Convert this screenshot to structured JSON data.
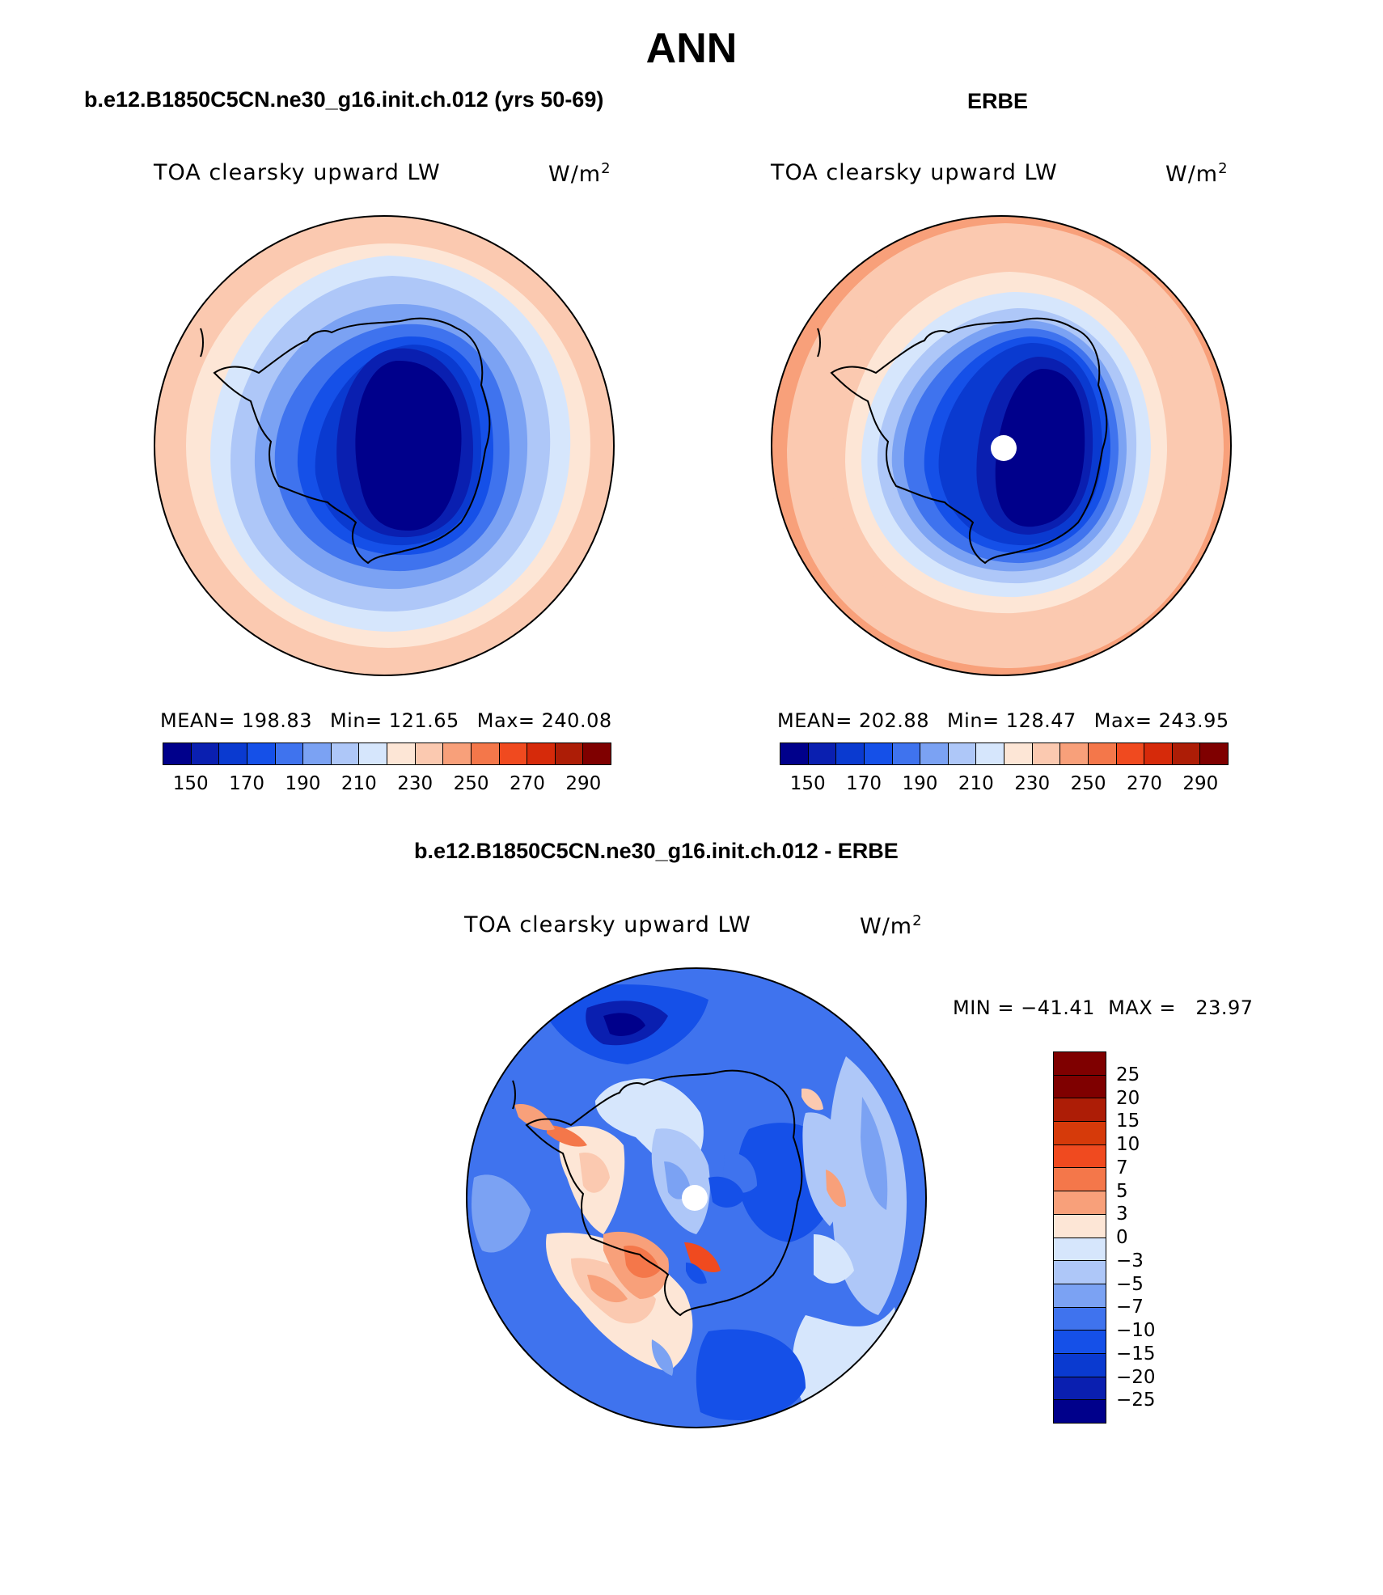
{
  "title": "ANN",
  "panels": {
    "model": {
      "title": "b.e12.B1850C5CN.ne30_g16.init.ch.012 (yrs 50-69)",
      "variable": "TOA clearsky upward LW",
      "units": "W/m",
      "units_exp": "2",
      "mean": "MEAN= 198.83",
      "min": "Min= 121.65",
      "max": "Max= 240.08"
    },
    "obs": {
      "title": "ERBE",
      "variable": "TOA clearsky upward LW",
      "units": "W/m",
      "units_exp": "2",
      "mean": "MEAN= 202.88",
      "min": "Min= 128.47",
      "max": "Max= 243.95"
    },
    "diff": {
      "title": "b.e12.B1850C5CN.ne30_g16.init.ch.012 - ERBE",
      "variable": "TOA clearsky upward LW",
      "units": "W/m",
      "units_exp": "2",
      "minmax": "MIN = −41.41  MAX =   23.97"
    }
  },
  "colorbar_abs": {
    "colors": [
      "#00008b",
      "#0a1fb0",
      "#0a3ad0",
      "#1550e8",
      "#3f73ee",
      "#7ba2f3",
      "#aec7f8",
      "#d6e6fc",
      "#fde6d6",
      "#fbc9b0",
      "#f8a07a",
      "#f4774a",
      "#f04a1f",
      "#d62a0a",
      "#ad1d06",
      "#7f0000"
    ],
    "labels": [
      "150",
      "170",
      "190",
      "210",
      "230",
      "250",
      "270",
      "290"
    ]
  },
  "colorbar_diff": {
    "colors": [
      "#7f0000",
      "#ad1d06",
      "#d63a0a",
      "#f04a1f",
      "#f4774a",
      "#f8a07a",
      "#fde6d6",
      "#d6e6fc",
      "#aec7f8",
      "#7ba2f3",
      "#3f73ee",
      "#1550e8",
      "#0a3ad0",
      "#0a1fb0",
      "#00008b"
    ],
    "labels": [
      "25",
      "20",
      "15",
      "10",
      "7",
      "5",
      "3",
      "0",
      "−3",
      "−5",
      "−7",
      "−10",
      "−15",
      "−20",
      "−25"
    ]
  }
}
